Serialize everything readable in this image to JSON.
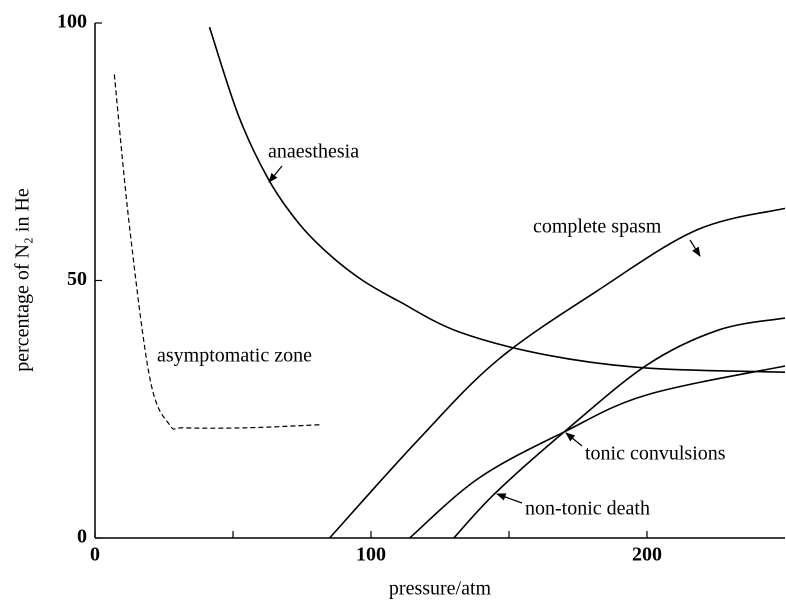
{
  "chart_data": {
    "type": "line",
    "xlabel": "pressure/atm",
    "ylabel": "percentage of N₂ in He",
    "xlim": [
      0,
      250
    ],
    "ylim": [
      0,
      100
    ],
    "xticks": [
      0,
      100,
      200
    ],
    "xminorticks": [
      50,
      150
    ],
    "yticks": [
      0,
      50,
      100
    ],
    "grid": false,
    "series": [
      {
        "name": "anaesthesia",
        "color": "#000000",
        "dashed": false,
        "x": [
          41.5,
          52,
          63,
          74,
          85,
          97,
          110,
          132,
          164,
          200,
          250
        ],
        "values": [
          99.2,
          82,
          69.5,
          61,
          55,
          50,
          46,
          40,
          35.5,
          33,
          32.2
        ]
      },
      {
        "name": "complete spasm",
        "color": "#000000",
        "dashed": false,
        "x": [
          85,
          117,
          146,
          182,
          218,
          250
        ],
        "values": [
          0,
          19,
          34.6,
          48,
          59.8,
          64
        ]
      },
      {
        "name": "tonic convulsions",
        "color": "#000000",
        "dashed": false,
        "x": [
          114,
          139,
          170,
          200,
          250
        ],
        "values": [
          0,
          11.6,
          20.6,
          27.8,
          33.4
        ]
      },
      {
        "name": "non-tonic death",
        "color": "#000000",
        "dashed": false,
        "x": [
          130,
          145,
          170,
          200,
          226,
          250
        ],
        "values": [
          0,
          8.7,
          20.6,
          33.6,
          40.4,
          42.7
        ]
      },
      {
        "name": "asymptomatic zone",
        "color": "#000000",
        "dashed": true,
        "x": [
          7,
          12.6,
          20,
          27,
          32.5,
          55,
          82
        ],
        "values": [
          90,
          60,
          30.7,
          22,
          21.4,
          21.4,
          22
        ]
      }
    ]
  }
}
